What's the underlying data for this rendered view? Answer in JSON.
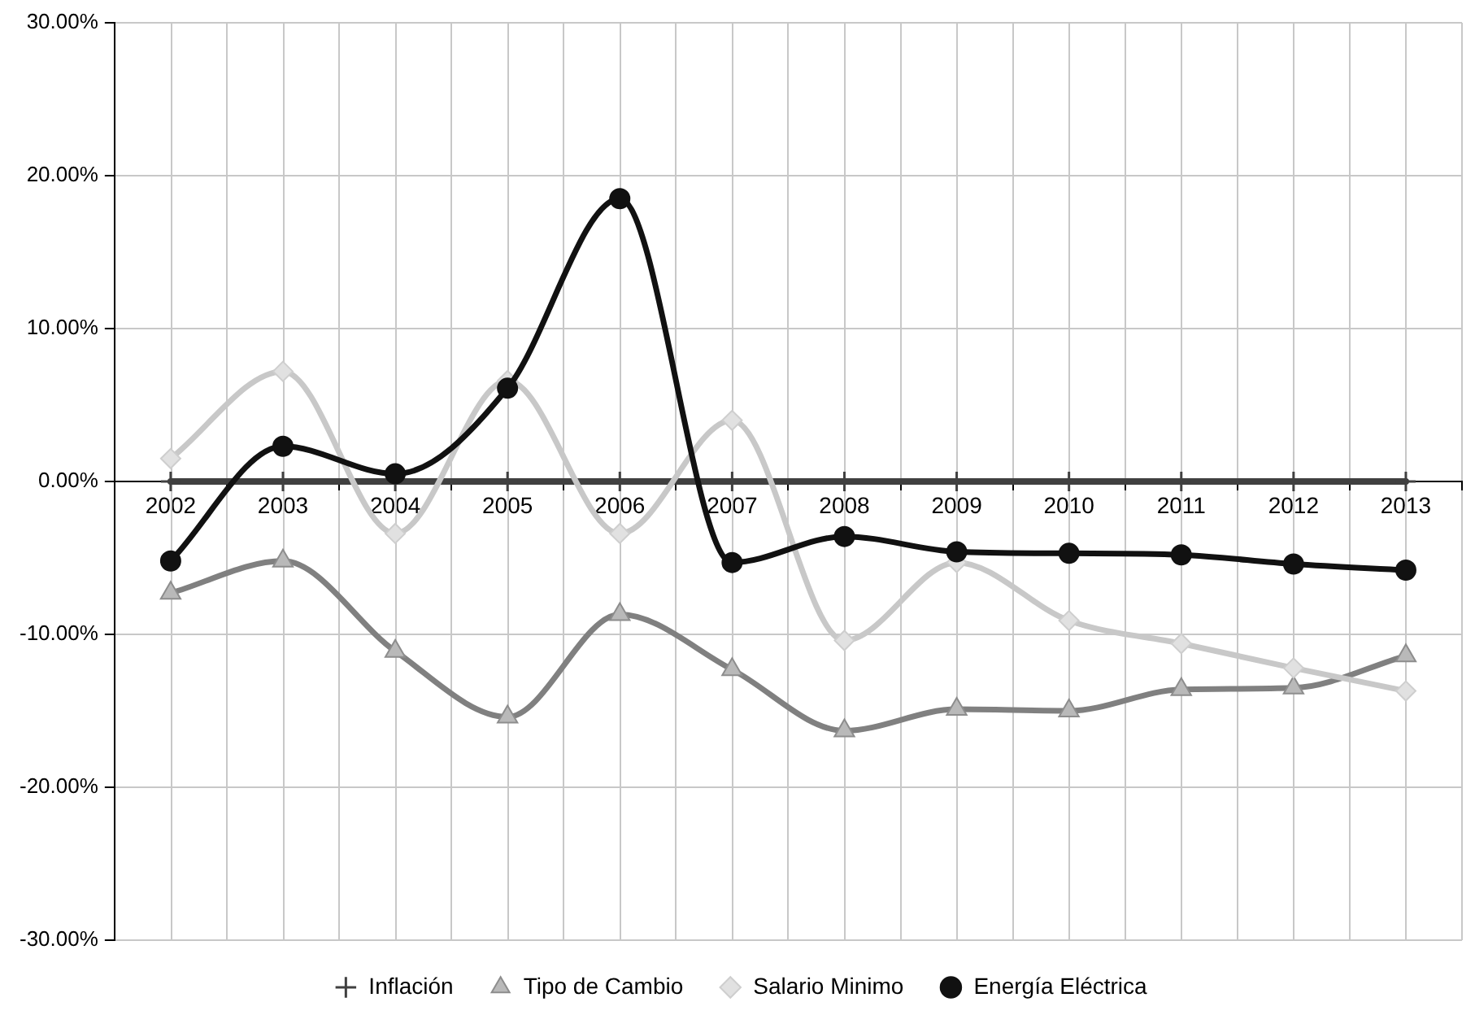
{
  "chart_data": {
    "type": "line",
    "categories": [
      "2002",
      "2003",
      "2004",
      "2005",
      "2006",
      "2007",
      "2008",
      "2009",
      "2010",
      "2011",
      "2012",
      "2013"
    ],
    "series": [
      {
        "name": "Inflación",
        "color": "#404040",
        "marker": "cross",
        "values": [
          0,
          0,
          0,
          0,
          0,
          0,
          0,
          0,
          0,
          0,
          0,
          0
        ]
      },
      {
        "name": "Tipo de Cambio",
        "color": "#808080",
        "marker": "triangle",
        "values": [
          -7.3,
          -5.2,
          -11.1,
          -15.4,
          -8.7,
          -12.3,
          -16.3,
          -14.9,
          -15.0,
          -13.6,
          -13.5,
          -11.4
        ]
      },
      {
        "name": "Salario Minimo",
        "color": "#c8c8c8",
        "marker": "diamond",
        "values": [
          1.5,
          7.2,
          -3.4,
          6.6,
          -3.4,
          4.0,
          -10.4,
          -5.3,
          -9.1,
          -10.6,
          -12.2,
          -13.7
        ]
      },
      {
        "name": "Energía Eléctrica",
        "color": "#111111",
        "marker": "circle",
        "values": [
          -5.2,
          2.3,
          0.5,
          6.1,
          18.5,
          -5.3,
          -3.6,
          -4.6,
          -4.7,
          -4.8,
          -5.4,
          -5.8
        ]
      }
    ],
    "ylim": [
      -30,
      30
    ],
    "yticks": [
      {
        "value": -30,
        "label": "-30.00%"
      },
      {
        "value": -20,
        "label": "-20.00%"
      },
      {
        "value": -10,
        "label": "-10.00%"
      },
      {
        "value": 0,
        "label": "0.00%"
      },
      {
        "value": 10,
        "label": "10.00%"
      },
      {
        "value": 20,
        "label": "20.00%"
      },
      {
        "value": 30,
        "label": "30.00%"
      }
    ],
    "grid": true,
    "legend": "bottom"
  }
}
